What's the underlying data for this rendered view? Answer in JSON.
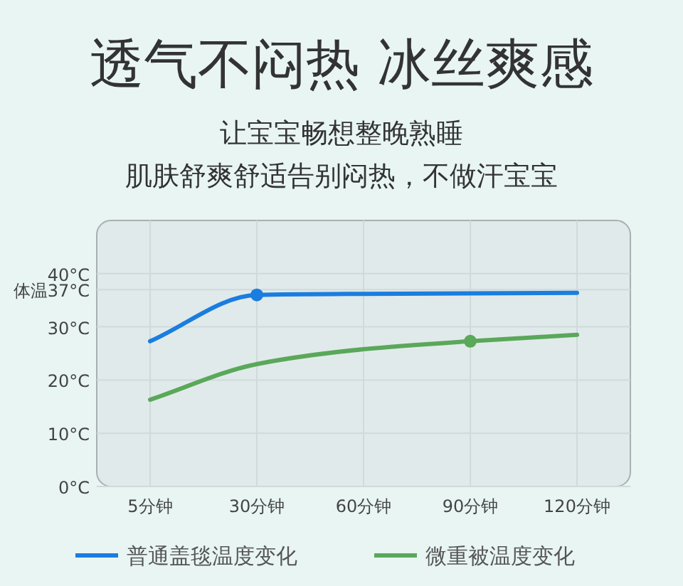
{
  "chart_data": {
    "type": "line",
    "title": "透气不闷热 冰丝爽感",
    "subtitle": "让宝宝畅想整晚熟睡",
    "annotations": [
      "肌肤舒爽舒适告别闷热，不做汗宝宝"
    ],
    "categories": [
      "5分钟",
      "30分钟",
      "60分钟",
      "90分钟",
      "120分钟"
    ],
    "ylim": [
      0,
      50
    ],
    "yticks": [
      {
        "value": 0,
        "label": "0°C"
      },
      {
        "value": 10,
        "label": "10°C"
      },
      {
        "value": 20,
        "label": "20°C"
      },
      {
        "value": 30,
        "label": "30°C"
      },
      {
        "value": 37,
        "label": "体温37°C"
      },
      {
        "value": 40,
        "label": "40°C"
      }
    ],
    "grid": true,
    "legend": "bottom",
    "series": [
      {
        "name": "普通盖毯温度变化",
        "color": "#1a7de0",
        "values": [
          27.3,
          36.0,
          36.2,
          36.3,
          36.4
        ]
      },
      {
        "name": "微重被温度变化",
        "color": "#5aa85a",
        "values": [
          16.3,
          23.0,
          25.8,
          27.3,
          28.5
        ]
      },
      {
        "type": "scatter",
        "color": "#1a7de0",
        "x": [
          "30分钟"
        ],
        "values": [
          36.0
        ]
      },
      {
        "type": "scatter",
        "color": "#5aa85a",
        "x": [
          "90分钟"
        ],
        "values": [
          27.3
        ]
      }
    ]
  }
}
